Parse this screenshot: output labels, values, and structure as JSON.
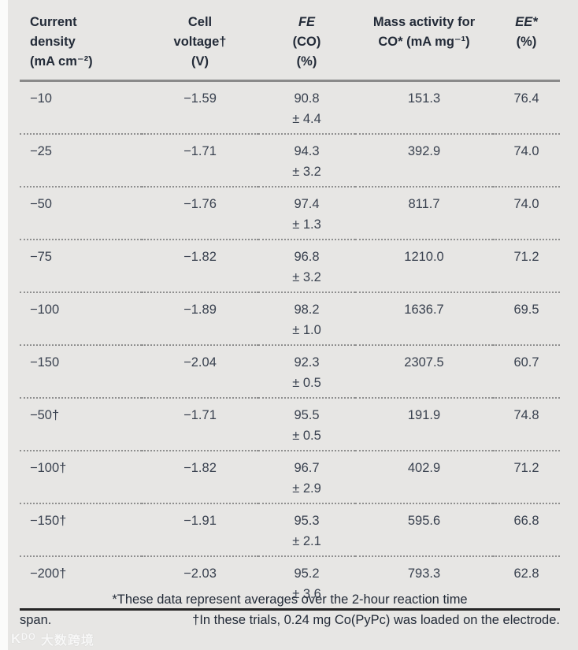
{
  "colors": {
    "panel_bg": "#e7e6e4",
    "left_strip": "#fbfbfa",
    "header_text": "#232b38",
    "body_text": "#39414f",
    "header_rule": "#8a8a8a",
    "row_divider": "#8f8f8f",
    "bottom_rule": "#262626"
  },
  "table": {
    "header": [
      {
        "lines": [
          "Current",
          "density",
          "(mA cm⁻²)"
        ]
      },
      {
        "lines": [
          "Cell",
          "voltage†",
          "(V)"
        ]
      },
      {
        "lines": [
          "FE",
          "(CO)",
          "(%)"
        ]
      },
      {
        "lines": [
          "Mass activity for",
          "CO* (mA mg⁻¹)"
        ]
      },
      {
        "lines": [
          "EE*",
          "(%)"
        ]
      }
    ],
    "rows": [
      {
        "current_density": "−10",
        "cell_voltage": "−1.59",
        "fe_co": "90.8",
        "fe_error": "± 4.4",
        "mass_activity": "151.3",
        "ee": "76.4"
      },
      {
        "current_density": "−25",
        "cell_voltage": "−1.71",
        "fe_co": "94.3",
        "fe_error": "± 3.2",
        "mass_activity": "392.9",
        "ee": "74.0"
      },
      {
        "current_density": "−50",
        "cell_voltage": "−1.76",
        "fe_co": "97.4",
        "fe_error": "± 1.3",
        "mass_activity": "811.7",
        "ee": "74.0"
      },
      {
        "current_density": "−75",
        "cell_voltage": "−1.82",
        "fe_co": "96.8",
        "fe_error": "± 3.2",
        "mass_activity": "1210.0",
        "ee": "71.2"
      },
      {
        "current_density": "−100",
        "cell_voltage": "−1.89",
        "fe_co": "98.2",
        "fe_error": "± 1.0",
        "mass_activity": "1636.7",
        "ee": "69.5"
      },
      {
        "current_density": "−150",
        "cell_voltage": "−2.04",
        "fe_co": "92.3",
        "fe_error": "± 0.5",
        "mass_activity": "2307.5",
        "ee": "60.7"
      },
      {
        "current_density": "−50†",
        "cell_voltage": "−1.71",
        "fe_co": "95.5",
        "fe_error": "± 0.5",
        "mass_activity": "191.9",
        "ee": "74.8"
      },
      {
        "current_density": "−100†",
        "cell_voltage": "−1.82",
        "fe_co": "96.7",
        "fe_error": "± 2.9",
        "mass_activity": "402.9",
        "ee": "71.2"
      },
      {
        "current_density": "−150†",
        "cell_voltage": "−1.91",
        "fe_co": "95.3",
        "fe_error": "± 2.1",
        "mass_activity": "595.6",
        "ee": "66.8"
      },
      {
        "current_density": "−200†",
        "cell_voltage": "−2.03",
        "fe_co": "95.2",
        "fe_error": "± 3.6",
        "mass_activity": "793.3",
        "ee": "62.8"
      }
    ],
    "footnote": {
      "line1": "*These data represent averages over the 2-hour reaction time",
      "line2_left": "span.",
      "line2_right": "†In these trials, 0.24 mg Co(PyPc) was loaded on the electrode."
    }
  },
  "watermark": {
    "logo": "Kᴰᴼ",
    "text": "大数跨境"
  }
}
